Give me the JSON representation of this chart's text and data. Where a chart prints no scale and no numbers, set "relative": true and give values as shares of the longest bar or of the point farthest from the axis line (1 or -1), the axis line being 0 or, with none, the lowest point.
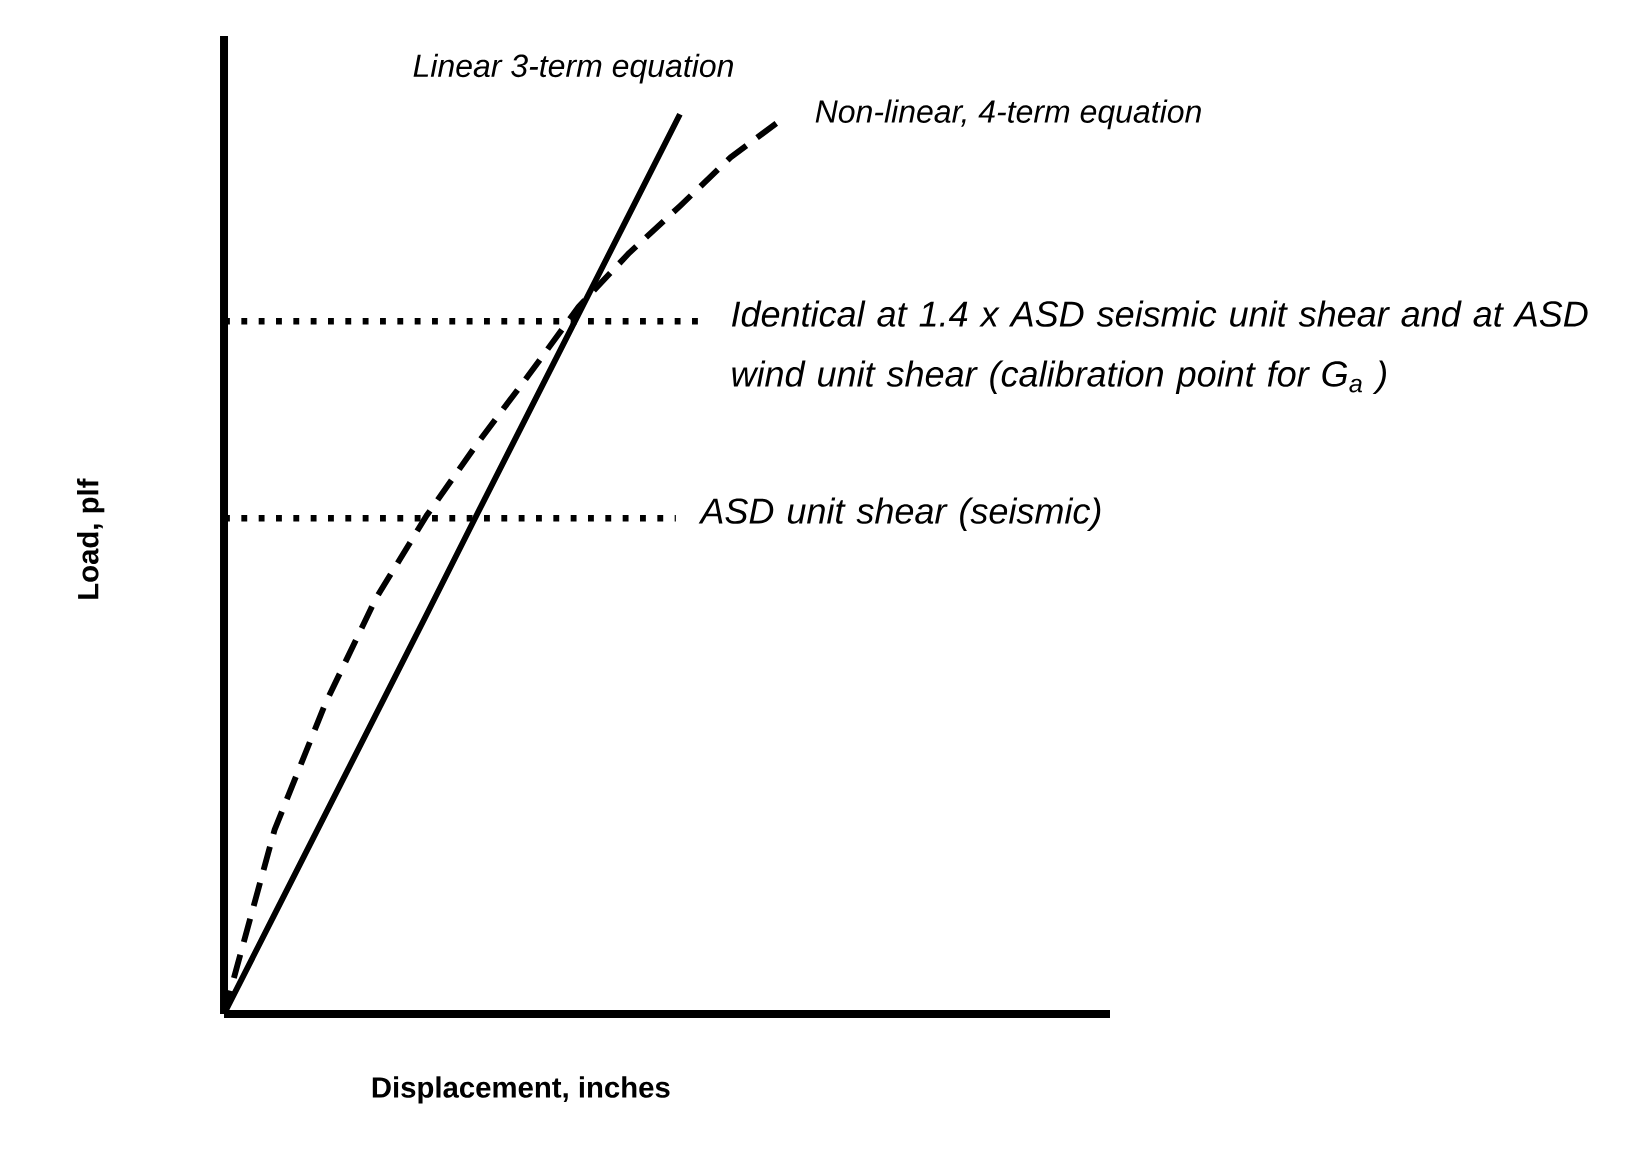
{
  "chart_data": {
    "type": "line",
    "relative": true,
    "xlabel": "Displacement, inches",
    "ylabel": "Load, plf",
    "legend": false,
    "categories": [
      null,
      null,
      null,
      null,
      null,
      null,
      null,
      null,
      null,
      null,
      null,
      null
    ],
    "series": [
      {
        "name": "Linear 3-term equation",
        "color": "#000000",
        "line_style": "solid",
        "values": [
          0,
          0.111,
          0.222,
          0.333,
          0.444,
          0.556,
          0.667,
          0.778,
          0.889,
          1,
          null,
          null
        ]
      },
      {
        "name": "Non-linear, 4-term equation",
        "color": "#000000",
        "line_style": "dashed",
        "values": [
          0,
          0.205,
          0.345,
          0.462,
          0.554,
          0.634,
          0.709,
          0.786,
          0.846,
          0.898,
          0.952,
          0.994
        ]
      }
    ],
    "ref_lines": [
      {
        "axis": "y",
        "value": 0.77,
        "label": "Identical at 1.4 x ASD seismic unit shear and at ASD wind unit shear (calibration point for G$_{a}$ )",
        "line_style": "dotted",
        "color": "#000000"
      },
      {
        "axis": "y",
        "value": 0.551,
        "label": "ASD unit shear (seismic)",
        "line_style": "dotted",
        "color": "#000000"
      }
    ]
  }
}
